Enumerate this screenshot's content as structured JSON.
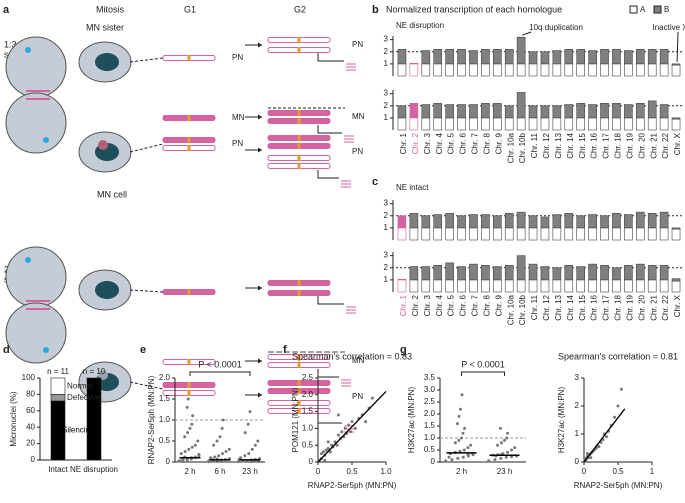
{
  "diagram": {
    "panel_label": "a",
    "headers": [
      "Mitosis",
      "G1",
      "G2"
    ],
    "sections": [
      {
        "title_lines": [
          "1:3",
          "segregation"
        ],
        "cells": [
          "MN sister",
          "MN cell"
        ]
      },
      {
        "title_lines": [
          "2:2",
          "segregation"
        ]
      }
    ],
    "labels": [
      "PN",
      "MN",
      "PN",
      "PN",
      "MN",
      "PN",
      "MN",
      "PN"
    ]
  },
  "chart_data": [
    {
      "type": "stacked_bar_rows",
      "panel_label": "b",
      "title": "Normalized transcription of each homologue",
      "subtitle": "NE disruption",
      "legend": [
        {
          "name": "A",
          "color": "#ffffff"
        },
        {
          "name": "B",
          "color": "#808080"
        }
      ],
      "highlight_color": "#d4639f",
      "categories": [
        "Chr. 1",
        "Chr. 2",
        "Chr. 3",
        "Chr. 4",
        "Chr. 5",
        "Chr. 6",
        "Chr. 7",
        "Chr. 8",
        "Chr. 9",
        "Chr. 10a",
        "Chr. 10b",
        "Chr. 11",
        "Chr. 12",
        "Chr. 13",
        "Chr. 14",
        "Chr. 15",
        "Chr. 16",
        "Chr. 17",
        "Chr. 18",
        "Chr. 19",
        "Chr. 20",
        "Chr. 21",
        "Chr. 22",
        "Chr. X"
      ],
      "ylim": [
        0,
        3.3
      ],
      "yticks": [
        1,
        2,
        3
      ],
      "reference_line": 2,
      "annotations": [
        {
          "text": "10q duplication",
          "index": 10
        },
        {
          "text": "Inactive X",
          "index": 23
        }
      ],
      "rows": [
        {
          "highlight": 1,
          "series": [
            {
              "values": [
                1,
                1,
                1,
                1,
                1,
                1,
                1,
                1,
                1,
                1,
                1,
                1,
                1,
                1,
                1,
                1,
                1,
                1,
                1,
                1,
                1,
                1,
                1,
                0.9
              ]
            },
            {
              "values": [
                1.2,
                0.05,
                1.1,
                1.2,
                1.2,
                1.2,
                1.1,
                1.2,
                1.2,
                1.2,
                2.2,
                1.0,
                1.0,
                1.1,
                1.2,
                1.2,
                1.1,
                1.2,
                1.2,
                1.1,
                1.2,
                1.2,
                1.2,
                0.1
              ]
            }
          ]
        },
        {
          "highlight": 1,
          "series": [
            {
              "values": [
                1,
                1,
                1,
                1,
                1,
                1,
                1,
                1,
                1,
                1,
                1,
                1,
                1,
                1,
                1,
                1,
                1,
                1,
                1,
                1,
                1,
                1,
                1,
                0.9
              ]
            },
            {
              "values": [
                1.0,
                1.2,
                1.1,
                1.2,
                1.1,
                1.1,
                1.1,
                1.2,
                1.2,
                1.0,
                2.1,
                1.0,
                1.0,
                1.0,
                1.1,
                1.2,
                1.1,
                1.2,
                1.2,
                1.1,
                1.2,
                1.4,
                1.1,
                0.1
              ]
            }
          ]
        }
      ]
    },
    {
      "type": "stacked_bar_rows",
      "panel_label": "c",
      "subtitle": "NE intact",
      "highlight_color": "#d4639f",
      "categories": [
        "Chr. 1",
        "Chr. 2",
        "Chr. 3",
        "Chr. 4",
        "Chr. 5",
        "Chr. 6",
        "Chr. 7",
        "Chr. 8",
        "Chr. 9",
        "Chr. 10a",
        "Chr. 10b",
        "Chr. 11",
        "Chr. 12",
        "Chr. 13",
        "Chr. 14",
        "Chr. 15",
        "Chr. 16",
        "Chr. 17",
        "Chr. 18",
        "Chr. 19",
        "Chr. 20",
        "Chr. 21",
        "Chr. 22",
        "Chr. X"
      ],
      "ylim": [
        0,
        3.3
      ],
      "yticks": [
        1,
        2,
        3
      ],
      "reference_line": 2,
      "rows": [
        {
          "highlight": 0,
          "series": [
            {
              "values": [
                1,
                1,
                1,
                1,
                1,
                1,
                1,
                1,
                1,
                1,
                1,
                1,
                1,
                1,
                1,
                1,
                1,
                1,
                1,
                1,
                1,
                1,
                1,
                0.9
              ]
            },
            {
              "values": [
                1.0,
                1.2,
                1.0,
                1.1,
                1.2,
                1.0,
                1.1,
                1.1,
                1.0,
                1.2,
                1.3,
                1.0,
                0.9,
                1.1,
                1.2,
                1.0,
                1.1,
                1.0,
                1.2,
                1.1,
                1.3,
                1.2,
                1.3,
                0.1
              ]
            }
          ]
        },
        {
          "highlight": 0,
          "series": [
            {
              "values": [
                1,
                1,
                1,
                1,
                1,
                1,
                1,
                1,
                1,
                1,
                1,
                1,
                1,
                1,
                1,
                1,
                1,
                1,
                1,
                1,
                1,
                1,
                1,
                0.9
              ]
            },
            {
              "values": [
                0.05,
                1.1,
                1.1,
                1.2,
                1.4,
                1.1,
                1.3,
                1.2,
                1.1,
                1.2,
                2.0,
                1.3,
                1.1,
                1.0,
                1.2,
                1.1,
                1.3,
                1.2,
                1.0,
                1.2,
                1.3,
                1.2,
                1.2,
                0.2
              ]
            }
          ]
        }
      ]
    },
    {
      "type": "stacked_bar",
      "panel_label": "d",
      "ylabel": "Micronuclei (%)",
      "categories": [
        "Intact",
        "NE disruption"
      ],
      "series": [
        {
          "name": "Silencing",
          "color": "#000000",
          "values": [
            72,
            100
          ]
        },
        {
          "name": "Defective",
          "color": "#999999",
          "values": [
            8,
            0
          ]
        },
        {
          "name": "Normal",
          "color": "#ffffff",
          "values": [
            20,
            0
          ]
        }
      ],
      "n_labels": [
        "n = 11",
        "n = 10"
      ],
      "ylim": [
        0,
        100
      ],
      "yticks": [
        0,
        20,
        40,
        60,
        80,
        100
      ]
    },
    {
      "type": "strip",
      "panel_label": "e",
      "ylabel": "RNAP2-Ser5ph (MN:PN)",
      "categories": [
        "2 h",
        "6 h",
        "23 h"
      ],
      "points": [
        [
          0.02,
          0.05,
          0.08,
          0.1,
          0.12,
          0.15,
          0.2,
          0.25,
          0.3,
          0.35,
          0.4,
          0.5,
          0.6,
          0.7,
          0.8,
          0.9,
          1.1,
          1.3,
          1.5,
          0.05,
          0.07,
          0.1,
          0.18,
          0.03,
          0.12
        ],
        [
          0.01,
          0.02,
          0.04,
          0.05,
          0.06,
          0.08,
          0.1,
          0.12,
          0.15,
          0.2,
          0.25,
          0.3,
          0.4,
          0.5,
          0.6,
          0.8,
          1.0,
          0.03,
          0.05,
          0.07
        ],
        [
          0.01,
          0.02,
          0.03,
          0.05,
          0.06,
          0.08,
          0.1,
          0.15,
          0.2,
          0.3,
          0.4,
          0.5,
          0.7,
          0.9,
          1.2,
          0.03,
          0.04,
          0.06
        ]
      ],
      "medians": [
        0.1,
        0.05,
        0.05
      ],
      "reference_line": 1,
      "annotation": "P < 0.0001",
      "ylim": [
        0,
        2
      ],
      "yticks": [
        0,
        0.5,
        {
          "value": 1,
          "label": "1.0"
        },
        1.5,
        {
          "value": 2,
          "label": "2.0"
        }
      ]
    },
    {
      "type": "scatter",
      "panel_label": "f",
      "annotation": "Spearman's correlation = 0.83",
      "xlabel": "RNAP2-Ser5ph (MN:PN)",
      "ylabel": "POM121 (MN:PN)",
      "x": [
        0.02,
        0.05,
        0.08,
        0.1,
        0.12,
        0.15,
        0.18,
        0.2,
        0.22,
        0.25,
        0.28,
        0.3,
        0.33,
        0.35,
        0.38,
        0.4,
        0.42,
        0.45,
        0.48,
        0.5,
        0.55,
        0.6,
        0.65,
        0.7,
        0.75,
        0.8,
        0.05,
        0.1,
        0.15,
        0.3
      ],
      "y": [
        0.05,
        0.1,
        0.3,
        0.2,
        0.35,
        0.4,
        0.3,
        0.5,
        0.45,
        0.6,
        0.5,
        0.8,
        0.7,
        0.9,
        0.75,
        1.0,
        0.85,
        1.1,
        0.9,
        1.2,
        1.0,
        1.3,
        1.4,
        1.2,
        1.6,
        1.9,
        0.25,
        0.05,
        0.6,
        1.4
      ],
      "fit_line": {
        "x": [
          0,
          1
        ],
        "y": [
          0,
          2.1
        ]
      },
      "xlim": [
        0,
        1
      ],
      "xticks": [
        0,
        0.5,
        {
          "value": 1,
          "label": "1.0"
        }
      ],
      "ylim": [
        0,
        2.5
      ],
      "yticks": [
        0,
        0.5,
        {
          "value": 1,
          "label": "1.0"
        },
        1.5,
        {
          "value": 2,
          "label": "2.0"
        },
        2.5
      ]
    },
    {
      "type": "strip",
      "panel_label": "g",
      "ylabel": "H3K27ac (MN:PN)",
      "categories": [
        "2 h",
        "23 h"
      ],
      "points": [
        [
          0.05,
          0.1,
          0.15,
          0.2,
          0.25,
          0.3,
          0.35,
          0.4,
          0.45,
          0.5,
          0.6,
          0.7,
          0.8,
          0.9,
          1.0,
          1.2,
          1.4,
          1.6,
          1.9,
          2.2,
          2.8,
          0.3,
          0.35,
          0.2,
          0.4
        ],
        [
          0.05,
          0.1,
          0.15,
          0.2,
          0.22,
          0.25,
          0.28,
          0.3,
          0.35,
          0.4,
          0.5,
          0.6,
          0.7,
          0.8,
          0.9,
          1.0,
          1.2,
          1.4,
          0.25,
          0.3
        ]
      ],
      "medians": [
        0.38,
        0.28
      ],
      "reference_line": 1,
      "annotation": "P < 0.0001",
      "ylim": [
        0,
        3.5
      ],
      "yticks": [
        0,
        0.5,
        {
          "value": 1,
          "label": "1.0"
        },
        1.5,
        {
          "value": 2,
          "label": "2.0"
        },
        2.5,
        {
          "value": 3,
          "label": "3.0"
        },
        3.5
      ]
    },
    {
      "type": "scatter",
      "annotation": "Spearman's correlation = 0.81",
      "xlabel": "RNAP2-Ser5ph (MN:PN)",
      "ylabel": "H3K27ac (MN:PN)",
      "x": [
        0.01,
        0.02,
        0.03,
        0.04,
        0.05,
        0.06,
        0.08,
        0.1,
        0.12,
        0.14,
        0.16,
        0.18,
        0.2,
        0.22,
        0.25,
        0.28,
        0.3,
        0.33,
        0.36,
        0.4,
        0.45,
        0.5,
        0.55,
        0.05,
        0.1
      ],
      "y": [
        0.05,
        0.1,
        0.08,
        0.15,
        0.2,
        0.15,
        0.25,
        0.3,
        0.35,
        0.4,
        0.45,
        0.5,
        0.6,
        0.55,
        0.7,
        0.8,
        1.0,
        0.9,
        1.1,
        1.3,
        1.6,
        2.0,
        2.6,
        0.3,
        0.15
      ],
      "fit_line": {
        "x": [
          0,
          0.6
        ],
        "y": [
          0,
          1.9
        ]
      },
      "xlim": [
        0,
        1
      ],
      "xticks": [
        0,
        0.5,
        1
      ],
      "ylim": [
        0,
        3
      ],
      "yticks": [
        0,
        1,
        2,
        3
      ]
    }
  ]
}
